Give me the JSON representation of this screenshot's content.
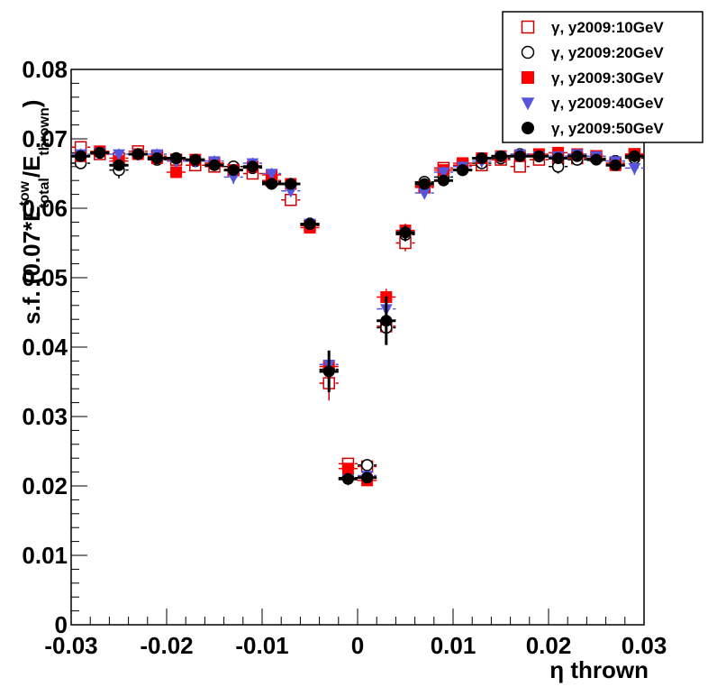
{
  "chart_data": {
    "type": "scatter",
    "title": "",
    "xlabel": "η thrown",
    "ylabel_parts": {
      "main": "s.f. (0.07*E",
      "sup": "tow",
      "sub": "total",
      "tail": "/E",
      "sub2": "thrown",
      "close": ")"
    },
    "xlim": [
      -0.03,
      0.03
    ],
    "ylim": [
      0,
      0.08
    ],
    "x_ticks": [
      {
        "value": -0.03,
        "label": "-0.03"
      },
      {
        "value": -0.02,
        "label": "-0.02"
      },
      {
        "value": -0.01,
        "label": "-0.01"
      },
      {
        "value": 0,
        "label": "0"
      },
      {
        "value": 0.01,
        "label": "0.01"
      },
      {
        "value": 0.02,
        "label": "0.02"
      },
      {
        "value": 0.03,
        "label": "0.03"
      }
    ],
    "y_ticks": [
      {
        "value": 0,
        "label": "0"
      },
      {
        "value": 0.01,
        "label": "0.01"
      },
      {
        "value": 0.02,
        "label": "0.02"
      },
      {
        "value": 0.03,
        "label": "0.03"
      },
      {
        "value": 0.04,
        "label": "0.04"
      },
      {
        "value": 0.05,
        "label": "0.05"
      },
      {
        "value": 0.06,
        "label": "0.06"
      },
      {
        "value": 0.07,
        "label": "0.07"
      },
      {
        "value": 0.08,
        "label": "0.08"
      }
    ],
    "grid": false,
    "legend_position": "top-right",
    "x_bin_half_width": 0.001,
    "x": [
      -0.029,
      -0.027,
      -0.025,
      -0.023,
      -0.021,
      -0.019,
      -0.017,
      -0.015,
      -0.013,
      -0.011,
      -0.009,
      -0.007,
      -0.005,
      -0.003,
      -0.001,
      0.001,
      0.003,
      0.005,
      0.007,
      0.009,
      0.011,
      0.013,
      0.015,
      0.017,
      0.019,
      0.021,
      0.023,
      0.025,
      0.027,
      0.029
    ],
    "series": [
      {
        "name": "γ, y2009:10GeV",
        "marker": "open-square",
        "color": "#cc0000",
        "values": [
          0.0688,
          0.0678,
          0.0672,
          0.0682,
          0.0675,
          0.067,
          0.0662,
          0.066,
          0.0655,
          0.065,
          0.064,
          0.0612,
          0.0575,
          0.0348,
          0.0232,
          0.0228,
          0.043,
          0.055,
          0.063,
          0.0658,
          0.0662,
          0.0662,
          0.067,
          0.066,
          0.067,
          0.0672,
          0.0672,
          0.0675,
          0.0665,
          0.0678
        ],
        "errors": [
          0.0008,
          0.0008,
          0.0008,
          0.0008,
          0.0008,
          0.0008,
          0.0008,
          0.0008,
          0.0008,
          0.0008,
          0.0008,
          0.0008,
          0.0008,
          0.0025,
          0.0006,
          0.0006,
          0.0018,
          0.0012,
          0.0008,
          0.0008,
          0.0008,
          0.0008,
          0.0008,
          0.0008,
          0.0008,
          0.0008,
          0.0008,
          0.0008,
          0.0008,
          0.0008
        ]
      },
      {
        "name": "γ, y2009:20GeV",
        "marker": "open-circle",
        "color": "#000000",
        "values": [
          0.0665,
          0.068,
          0.0655,
          0.0678,
          0.067,
          0.0672,
          0.0668,
          0.0665,
          0.066,
          0.0658,
          0.0638,
          0.0635,
          0.0578,
          0.0368,
          0.0212,
          0.023,
          0.0428,
          0.0562,
          0.0638,
          0.0645,
          0.0655,
          0.0665,
          0.0672,
          0.0678,
          0.0675,
          0.066,
          0.067,
          0.0672,
          0.0668,
          0.0672
        ],
        "errors": [
          0.0008,
          0.0008,
          0.0012,
          0.0008,
          0.0008,
          0.0008,
          0.0008,
          0.0008,
          0.0008,
          0.0008,
          0.0008,
          0.0008,
          0.0008,
          0.002,
          0.0006,
          0.0006,
          0.0018,
          0.001,
          0.0008,
          0.0008,
          0.0008,
          0.0008,
          0.0008,
          0.0008,
          0.0008,
          0.001,
          0.0008,
          0.0008,
          0.0008,
          0.0008
        ]
      },
      {
        "name": "γ, y2009:30GeV",
        "marker": "filled-square",
        "color": "#ff0000",
        "values": [
          0.0675,
          0.0682,
          0.0668,
          0.0678,
          0.0672,
          0.0652,
          0.067,
          0.0665,
          0.0655,
          0.066,
          0.0648,
          0.0635,
          0.0572,
          0.0372,
          0.0225,
          0.0208,
          0.0472,
          0.0568,
          0.0632,
          0.0655,
          0.0665,
          0.0672,
          0.0675,
          0.0675,
          0.0678,
          0.068,
          0.0678,
          0.0675,
          0.0662,
          0.0678
        ],
        "errors": [
          0.0008,
          0.0008,
          0.0008,
          0.0008,
          0.0008,
          0.0008,
          0.0008,
          0.0008,
          0.0008,
          0.0008,
          0.0008,
          0.0008,
          0.0008,
          0.0015,
          0.0006,
          0.0006,
          0.0012,
          0.001,
          0.0008,
          0.0008,
          0.0008,
          0.0008,
          0.0008,
          0.0008,
          0.0008,
          0.0008,
          0.0008,
          0.0008,
          0.0008,
          0.0008
        ]
      },
      {
        "name": "γ, y2009:40GeV",
        "marker": "filled-triangle-down",
        "color": "#5555dd",
        "values": [
          0.0678,
          0.068,
          0.0678,
          0.0678,
          0.0678,
          0.0668,
          0.0668,
          0.0668,
          0.0645,
          0.0665,
          0.065,
          0.0625,
          0.0578,
          0.0375,
          0.021,
          0.0215,
          0.0455,
          0.0565,
          0.0622,
          0.0652,
          0.066,
          0.0668,
          0.0675,
          0.0678,
          0.0675,
          0.0675,
          0.0678,
          0.0675,
          0.0668,
          0.0658
        ],
        "errors": [
          0.0008,
          0.0008,
          0.0008,
          0.0008,
          0.0008,
          0.0008,
          0.0008,
          0.0008,
          0.001,
          0.0008,
          0.0008,
          0.0008,
          0.0008,
          0.002,
          0.0006,
          0.0006,
          0.0015,
          0.001,
          0.0008,
          0.0008,
          0.0008,
          0.0008,
          0.0008,
          0.0008,
          0.0008,
          0.0008,
          0.0008,
          0.0008,
          0.0008,
          0.001
        ]
      },
      {
        "name": "γ, y2009:50GeV",
        "marker": "filled-circle",
        "color": "#000000",
        "values": [
          0.0675,
          0.068,
          0.0662,
          0.0678,
          0.0672,
          0.0672,
          0.067,
          0.0662,
          0.0655,
          0.066,
          0.0635,
          0.0635,
          0.0577,
          0.0365,
          0.021,
          0.0212,
          0.0438,
          0.0565,
          0.0635,
          0.064,
          0.0655,
          0.0672,
          0.0675,
          0.0675,
          0.0675,
          0.0672,
          0.0675,
          0.067,
          0.0662,
          0.0675
        ],
        "errors": [
          0.0008,
          0.0008,
          0.0008,
          0.0008,
          0.0008,
          0.0008,
          0.0008,
          0.0008,
          0.0008,
          0.0008,
          0.0008,
          0.0008,
          0.0008,
          0.003,
          0.0006,
          0.0006,
          0.0035,
          0.001,
          0.0008,
          0.0008,
          0.0008,
          0.0008,
          0.0008,
          0.0008,
          0.0008,
          0.0008,
          0.0008,
          0.0008,
          0.0008,
          0.0008
        ]
      }
    ]
  }
}
